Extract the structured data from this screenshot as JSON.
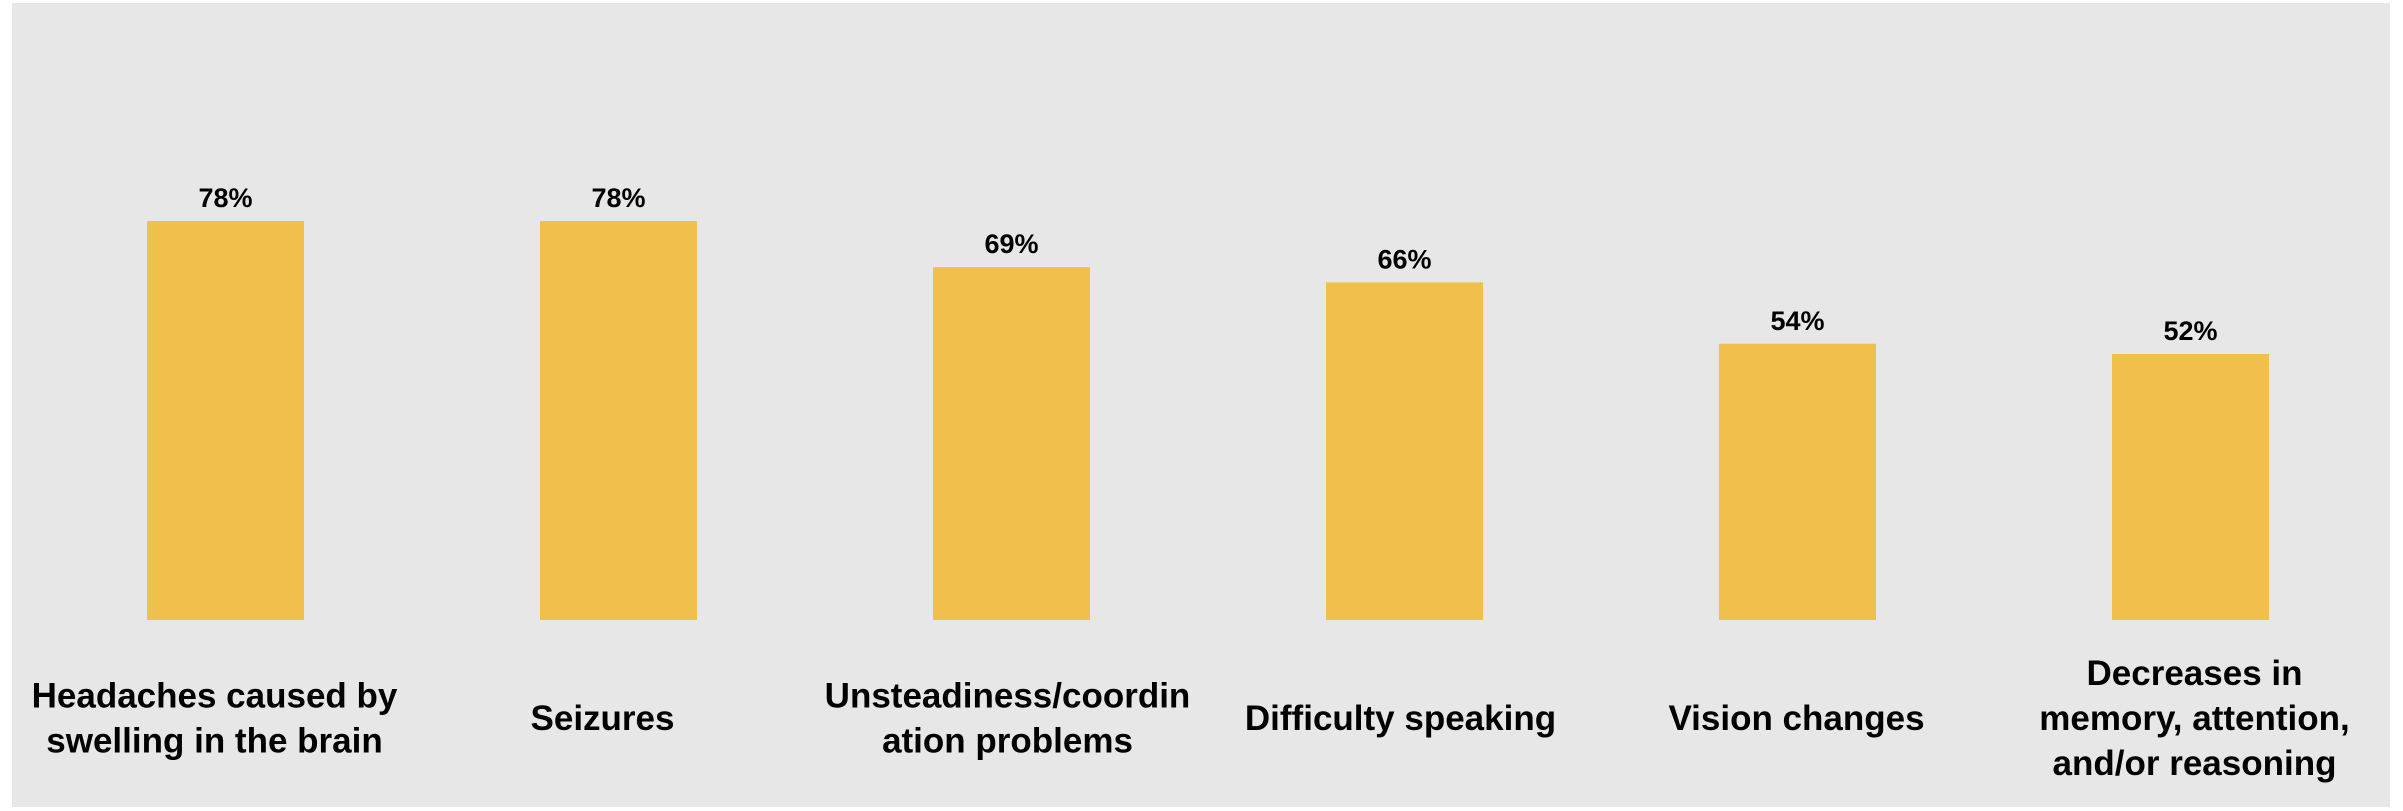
{
  "chart_data": {
    "type": "bar",
    "categories": [
      [
        "Headaches caused by",
        "swelling in the brain"
      ],
      [
        "Seizures"
      ],
      [
        "Unsteadiness/coordin",
        "ation problems"
      ],
      [
        "Difficulty speaking"
      ],
      [
        "Vision changes"
      ],
      [
        "Decreases in",
        "memory, attention,",
        "and/or reasoning"
      ]
    ],
    "values": [
      78,
      78,
      69,
      66,
      54,
      52
    ],
    "value_labels": [
      "78%",
      "78%",
      "69%",
      "66%",
      "54%",
      "52%"
    ],
    "title": "",
    "xlabel": "",
    "ylabel": "",
    "ylim": [
      0,
      100
    ],
    "grid": false,
    "bar_color": "#f0bf4c",
    "background_color": "#e7e7e7"
  }
}
